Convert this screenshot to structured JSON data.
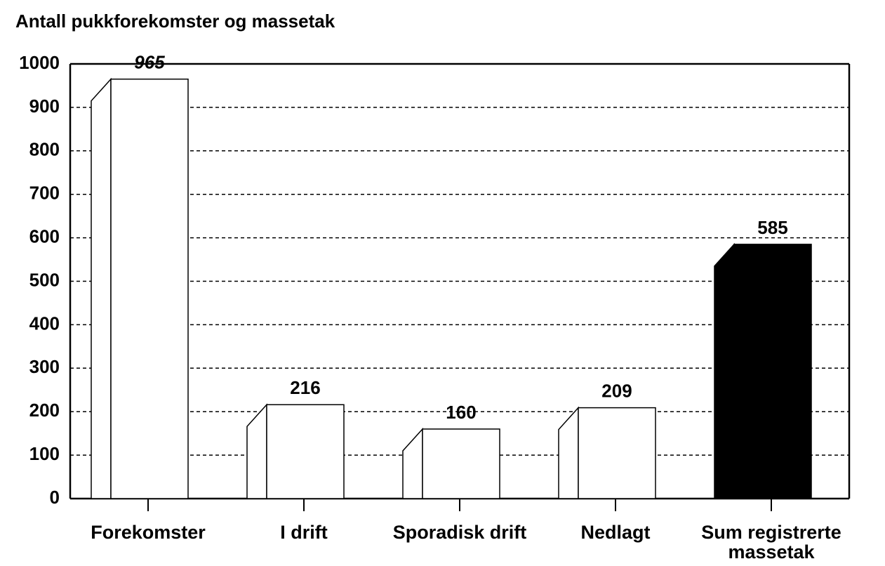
{
  "chart_data": {
    "type": "bar",
    "title": "Antall pukkforekomster og massetak",
    "categories": [
      "Forekomster",
      "I drift",
      "Sporadisk drift",
      "Nedlagt",
      "Sum registrerte massetak"
    ],
    "values": [
      965,
      216,
      160,
      209,
      585
    ],
    "colors": [
      "#ffffff",
      "#ffffff",
      "#ffffff",
      "#ffffff",
      "#000000"
    ],
    "ylim": [
      0,
      1000
    ],
    "yticks": [
      0,
      100,
      200,
      300,
      400,
      500,
      600,
      700,
      800,
      900,
      1000
    ],
    "grid": true
  }
}
